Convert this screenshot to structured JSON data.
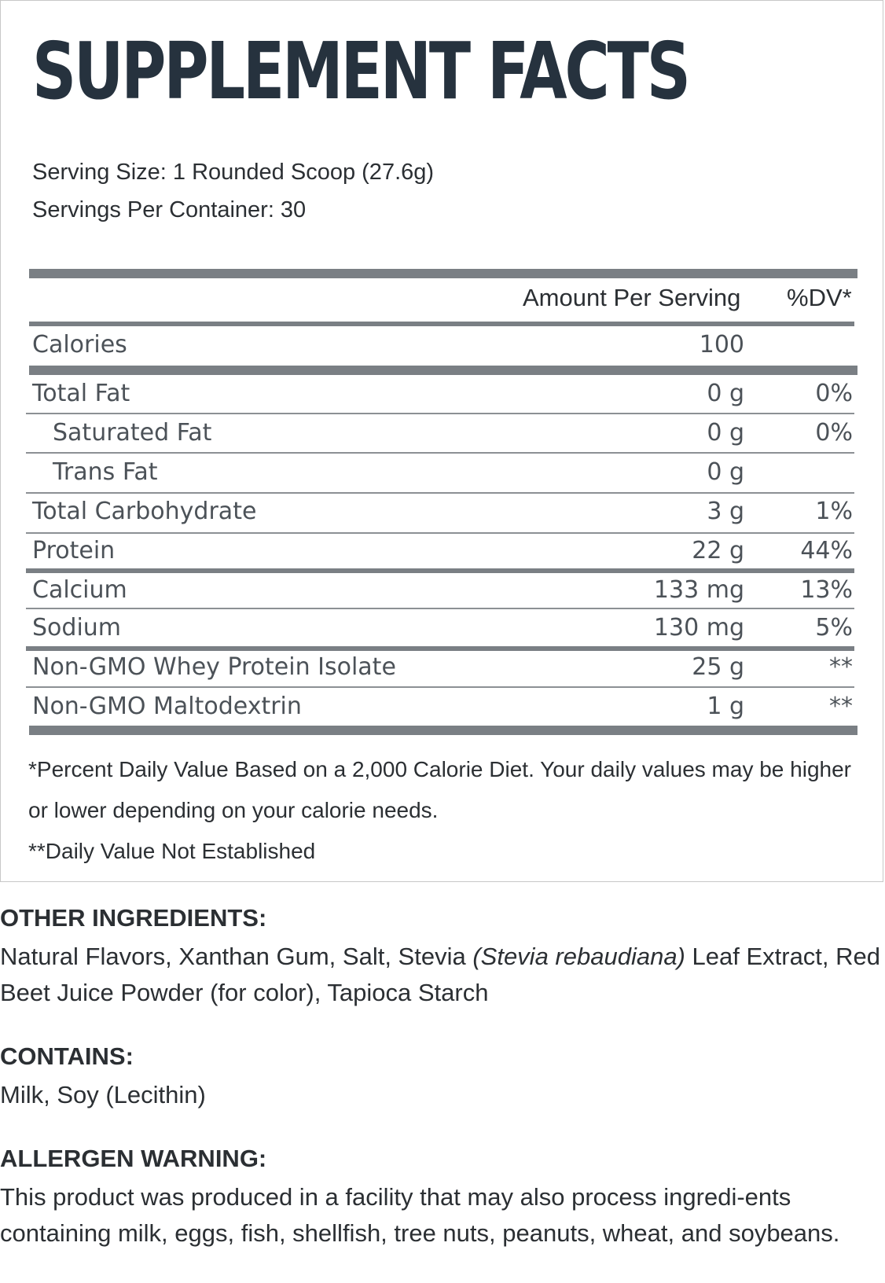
{
  "title": "SUPPLEMENT FACTS",
  "serving_size": "Serving Size: 1 Rounded Scoop (27.6g)",
  "servings_per_container": "Servings Per Container: 30",
  "header": {
    "amount_label": "Amount Per Serving",
    "dv_label": "%DV*"
  },
  "calories": {
    "label": "Calories",
    "amount": "100"
  },
  "nutrients": [
    {
      "name": "Total Fat",
      "amount": "0 g",
      "dv": "0%"
    },
    {
      "name": "Saturated Fat",
      "amount": "0 g",
      "dv": "0%"
    },
    {
      "name": "Trans Fat",
      "amount": "0 g",
      "dv": ""
    },
    {
      "name": "Total Carbohydrate",
      "amount": "3 g",
      "dv": "1%"
    },
    {
      "name": "Protein",
      "amount": "22 g",
      "dv": "44%"
    },
    {
      "name": "Calcium",
      "amount": "133 mg",
      "dv": "13%"
    },
    {
      "name": "Sodium",
      "amount": "130 mg",
      "dv": "5%"
    },
    {
      "name": "Non-GMO Whey Protein Isolate",
      "amount": "25 g",
      "dv": "**"
    },
    {
      "name": "Non-GMO Maltodextrin",
      "amount": "1 g",
      "dv": "**"
    }
  ],
  "footnotes": {
    "percent_dv": "*Percent Daily Value Based on a 2,000 Calorie Diet. Your daily values may be higher or lower depending on your calorie needs.",
    "not_established": "**Daily Value Not Established"
  },
  "other_ingredients": {
    "heading": "OTHER INGREDIENTS:",
    "text_before": "Natural Flavors, Xanthan Gum, Salt, Stevia ",
    "text_italic": "(Stevia rebaudiana)",
    "text_after": " Leaf Extract, Red Beet Juice Powder (for color), Tapioca Starch"
  },
  "contains": {
    "heading": "CONTAINS:",
    "text": "Milk, Soy (Lecithin)"
  },
  "allergen_warning": {
    "heading": "ALLERGEN WARNING:",
    "text": "This product was produced in a facility that may also process ingredi-ents containing milk, eggs, fish, shellfish, tree nuts, peanuts, wheat, and soybeans."
  }
}
